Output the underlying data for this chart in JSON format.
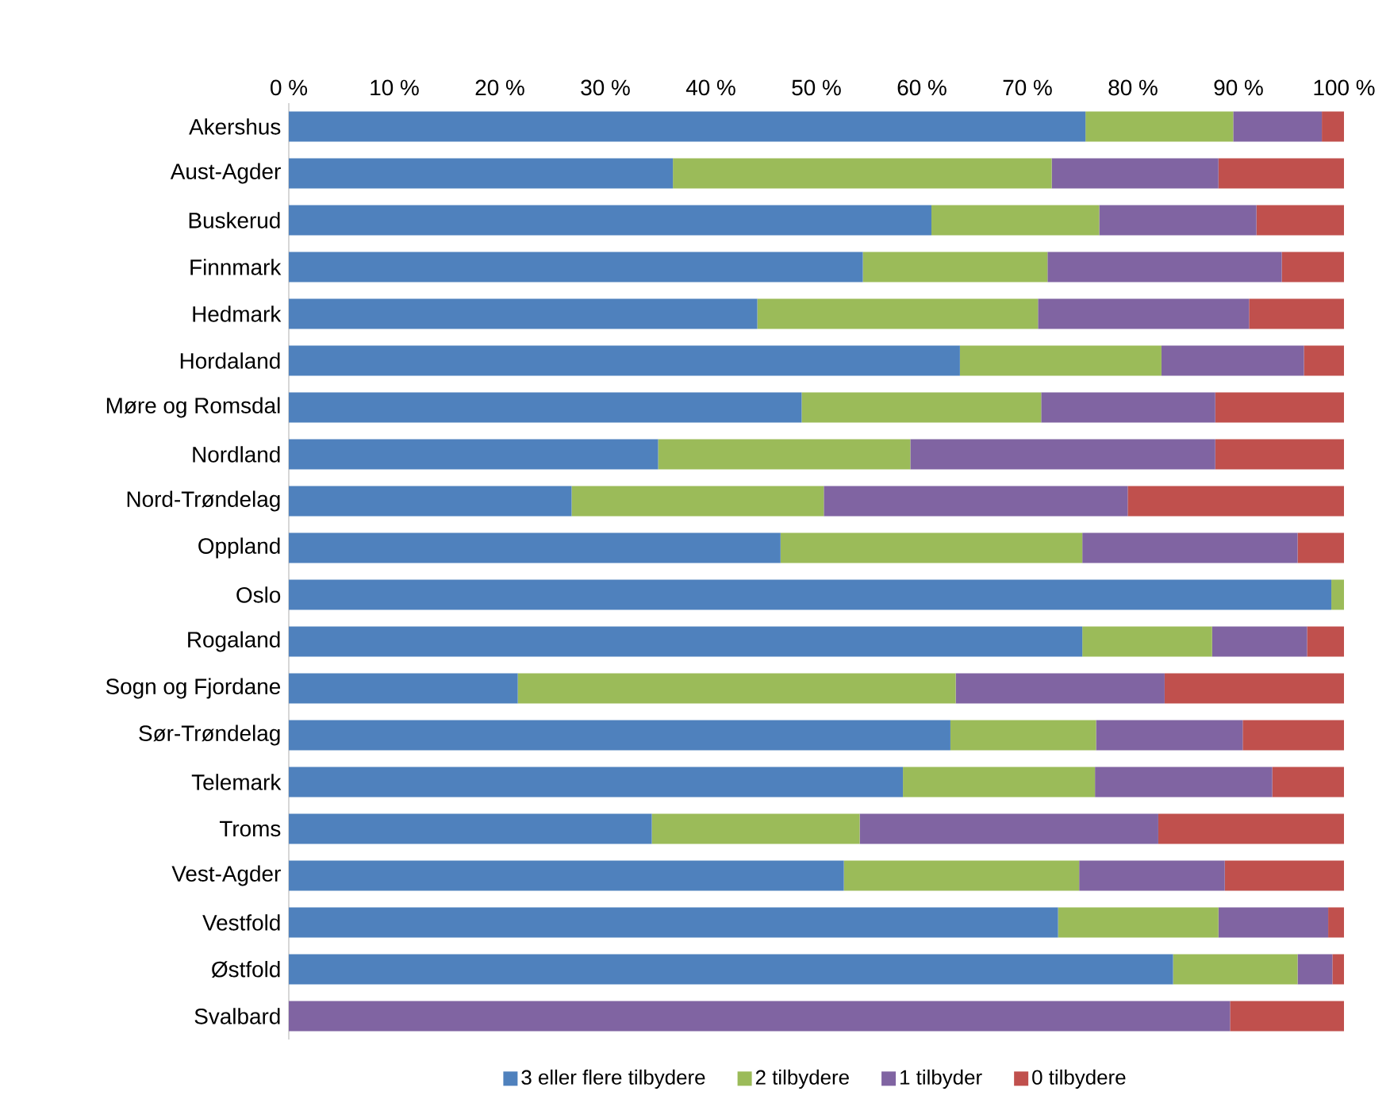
{
  "chart_data": {
    "type": "bar",
    "orientation": "horizontal",
    "stacked": true,
    "categories": [
      "Akershus",
      "Aust-Agder",
      "Buskerud",
      "Finnmark",
      "Hedmark",
      "Hordaland",
      "Møre og Romsdal",
      "Nordland",
      "Nord-Trøndelag",
      "Oppland",
      "Oslo",
      "Rogaland",
      "Sogn og Fjordane",
      "Sør-Trøndelag",
      "Telemark",
      "Troms",
      "Vest-Agder",
      "Vestfold",
      "Østfold",
      "Svalbard"
    ],
    "series": [
      {
        "name": "3 eller flere tilbydere",
        "color": "#4f81bd",
        "values": [
          75.5,
          36.4,
          60.9,
          54.4,
          44.4,
          63.6,
          48.6,
          35.0,
          26.8,
          46.6,
          98.8,
          75.2,
          21.7,
          62.7,
          58.2,
          34.4,
          52.6,
          72.9,
          83.8,
          0
        ]
      },
      {
        "name": "2 tilbydere",
        "color": "#9bbb59",
        "values": [
          14.0,
          35.9,
          15.9,
          17.5,
          26.6,
          19.1,
          22.7,
          23.9,
          23.9,
          28.6,
          1.2,
          12.3,
          41.5,
          13.8,
          18.2,
          19.7,
          22.3,
          15.2,
          11.8,
          0
        ]
      },
      {
        "name": "1 tilbyder",
        "color": "#8064a2",
        "values": [
          8.4,
          15.8,
          14.9,
          22.2,
          20.0,
          13.5,
          16.5,
          28.9,
          28.8,
          20.4,
          0,
          9.0,
          19.8,
          13.9,
          16.8,
          28.3,
          13.8,
          10.4,
          3.3,
          89.2
        ]
      },
      {
        "name": "0 tilbydere",
        "color": "#c0504d",
        "values": [
          2.1,
          11.9,
          8.3,
          5.9,
          9.0,
          3.8,
          12.2,
          12.2,
          20.5,
          4.4,
          0,
          3.5,
          17.0,
          9.6,
          6.8,
          17.6,
          11.3,
          1.5,
          1.1,
          10.8
        ]
      }
    ],
    "xlim": [
      0,
      100
    ],
    "xticks": [
      {
        "value": 0,
        "label": "0 %"
      },
      {
        "value": 10,
        "label": "10 %"
      },
      {
        "value": 20,
        "label": "20 %"
      },
      {
        "value": 30,
        "label": "30 %"
      },
      {
        "value": 40,
        "label": "40 %"
      },
      {
        "value": 50,
        "label": "50 %"
      },
      {
        "value": 60,
        "label": "60 %"
      },
      {
        "value": 70,
        "label": "70 %"
      },
      {
        "value": 80,
        "label": "80 %"
      },
      {
        "value": 90,
        "label": "90 %"
      },
      {
        "value": 100,
        "label": "100 %"
      }
    ],
    "legend": "bottom"
  }
}
